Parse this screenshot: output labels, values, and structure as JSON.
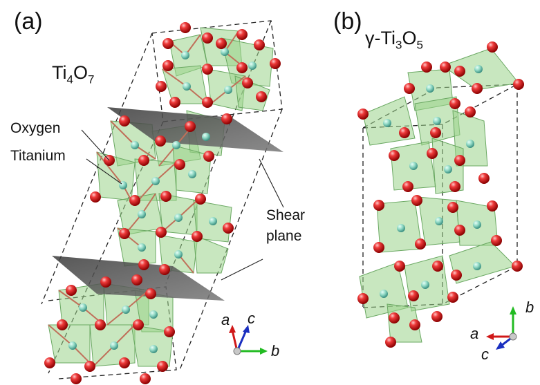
{
  "panel_a": {
    "label": "(a)",
    "formula": {
      "p1": "Ti",
      "s1": "4",
      "p2": "O",
      "s2": "7"
    },
    "oxygen_label": "Oxygen",
    "titanium_label": "Titanium",
    "shear_plane_label": [
      "Shear",
      "plane"
    ],
    "axes": {
      "a": "a",
      "c": "c",
      "b": "b"
    }
  },
  "panel_b": {
    "label": "(b)",
    "formula": {
      "p1": "γ-Ti",
      "s1": "3",
      "p2": "O",
      "s2": "5"
    },
    "axes": {
      "b": "b",
      "a": "a",
      "c": "c"
    }
  },
  "colors": {
    "oxygen": "#e02020",
    "titanium": "#7fd6c0",
    "octahedron": "#9ad48a",
    "shear_plane": "#555555",
    "axis_a": "#d01818",
    "axis_b": "#22bb22",
    "axis_c": "#1a2fc0"
  }
}
